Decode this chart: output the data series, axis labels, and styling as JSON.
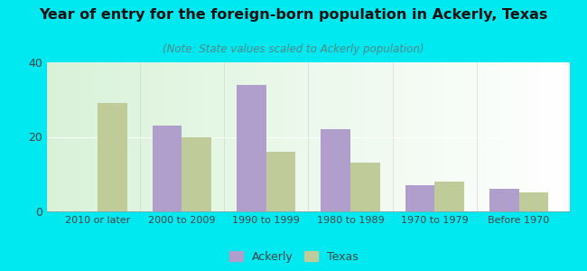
{
  "categories": [
    "2010 or later",
    "2000 to 2009",
    "1990 to 1999",
    "1980 to 1989",
    "1970 to 1979",
    "Before 1970"
  ],
  "ackerly_values": [
    0,
    23,
    34,
    22,
    7,
    6
  ],
  "texas_values": [
    29,
    20,
    16,
    13,
    8,
    5
  ],
  "ackerly_color": "#b09fcc",
  "texas_color": "#bfcc99",
  "title": "Year of entry for the foreign-born population in Ackerly, Texas",
  "subtitle": "(Note: State values scaled to Ackerly population)",
  "ylim": [
    0,
    40
  ],
  "yticks": [
    0,
    20,
    40
  ],
  "background_outer": "#00e8f0",
  "title_fontsize": 11.5,
  "subtitle_fontsize": 8.5,
  "legend_label_ackerly": "Ackerly",
  "legend_label_texas": "Texas",
  "bar_width": 0.35,
  "tick_label_fontsize": 8,
  "ytick_label_fontsize": 9
}
